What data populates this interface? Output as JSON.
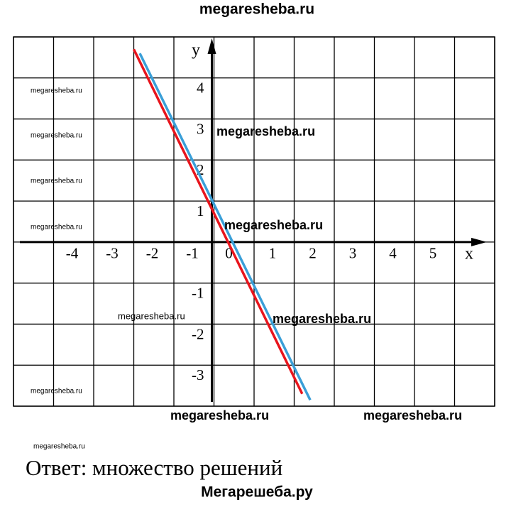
{
  "header": {
    "title": "megaresheba.ru"
  },
  "chart_data": {
    "type": "line",
    "x_label": "x",
    "y_label": "y",
    "origin_label": "0",
    "series": [
      {
        "color": "#e8141c",
        "x": [
          -2,
          2.2
        ],
        "values": [
          4.7,
          -3.7
        ]
      },
      {
        "color": "#3a9fd8",
        "x": [
          -1.85,
          2.4
        ],
        "values": [
          4.6,
          -3.85
        ]
      }
    ],
    "xlim": [
      -5,
      7
    ],
    "ylim": [
      -4,
      5
    ],
    "xticks": [
      -4,
      -3,
      -2,
      -1,
      1,
      2,
      3,
      4,
      5
    ],
    "yticks": [
      -3,
      -2,
      -1,
      1,
      2,
      3,
      4
    ],
    "grid": true
  },
  "watermarks": [
    "megaresheba.ru",
    "megaresheba.ru",
    "megaresheba.ru",
    "megaresheba.ru",
    "megaresheba.ru",
    "megaresheba.ru",
    "megaresheba.ru",
    "megaresheba.ru",
    "megaresheba.ru",
    "megaresheba.ru",
    "megaresheba.ru",
    "megaresheba.ru",
    "megaresheba.ru"
  ],
  "answer": "Ответ: множество решений",
  "footer": "Мегарешеба.ру"
}
